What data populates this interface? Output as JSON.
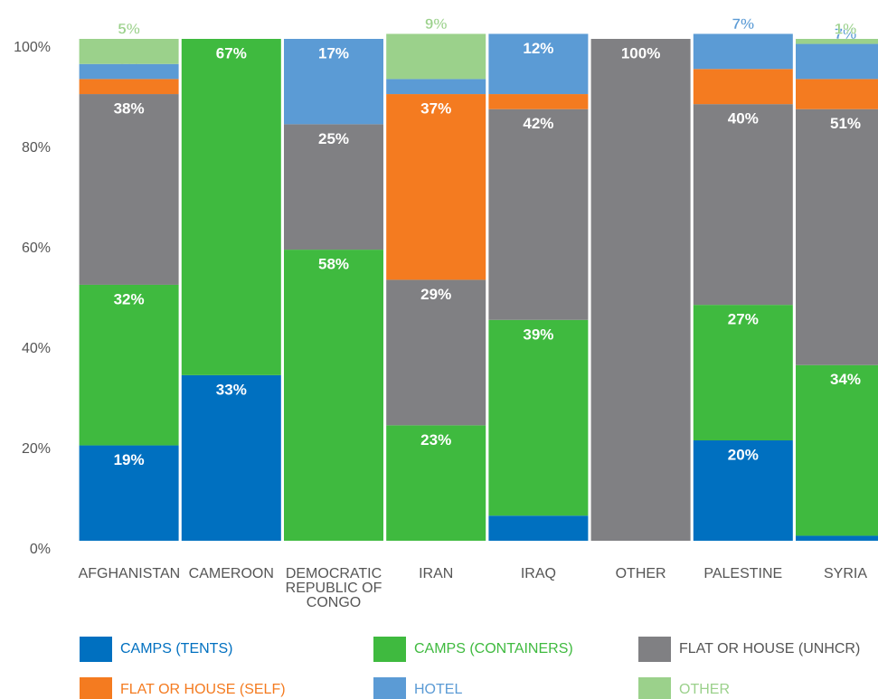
{
  "chart_data": {
    "type": "stacked_bar",
    "categories": [
      "AFGHANISTAN",
      "CAMEROON",
      "DEMOCRATIC REPUBLIC OF CONGO",
      "IRAN",
      "IRAQ",
      "OTHER",
      "PALESTINE",
      "SYRIA"
    ],
    "series": [
      {
        "name": "CAMPS (TENTS)",
        "color": "#0070c0",
        "values": [
          19,
          33,
          null,
          null,
          5,
          null,
          20,
          1
        ],
        "value_labels": [
          "19%",
          "33%",
          null,
          null,
          "5%",
          null,
          "20%",
          "1%"
        ]
      },
      {
        "name": "CAMPS (CONTAINERS)",
        "color": "#3fba3f",
        "values": [
          32,
          67,
          58,
          23,
          39,
          null,
          27,
          34
        ],
        "value_labels": [
          "32%",
          "67%",
          "58%",
          "23%",
          "39%",
          null,
          "27%",
          "34%"
        ]
      },
      {
        "name": "FLAT OR HOUSE (UNHCR)",
        "color": "#808083",
        "values": [
          38,
          null,
          25,
          29,
          42,
          100,
          40,
          51
        ],
        "value_labels": [
          "38%",
          null,
          "25%",
          "29%",
          "42%",
          "100%",
          "40%",
          "51%"
        ]
      },
      {
        "name": "FLAT OR HOUSE (SELF)",
        "color": "#f47b20",
        "values": [
          3,
          null,
          null,
          37,
          3,
          null,
          7,
          6
        ],
        "value_labels": [
          "3%",
          null,
          null,
          "37%",
          "3%",
          null,
          "7%",
          "6%"
        ]
      },
      {
        "name": "HOTEL",
        "color": "#5b9bd5",
        "values": [
          3,
          null,
          17,
          3,
          12,
          null,
          7,
          7
        ],
        "value_labels": [
          "3%",
          null,
          "17%",
          "3%",
          "12%",
          null,
          "7%",
          "7%"
        ]
      },
      {
        "name": "OTHER",
        "color": "#9bd18b",
        "values": [
          5,
          null,
          null,
          9,
          null,
          null,
          null,
          1
        ],
        "value_labels": [
          "5%",
          null,
          null,
          "9%",
          null,
          null,
          null,
          "1%"
        ]
      }
    ],
    "ylim": [
      0,
      100
    ],
    "yticks": [
      {
        "value": 0,
        "label": "0%"
      },
      {
        "value": 20,
        "label": "20%"
      },
      {
        "value": 40,
        "label": "40%"
      },
      {
        "value": 60,
        "label": "60%"
      },
      {
        "value": 80,
        "label": "80%"
      },
      {
        "value": 100,
        "label": "100%"
      }
    ],
    "grid": false,
    "legend": "bottom"
  }
}
